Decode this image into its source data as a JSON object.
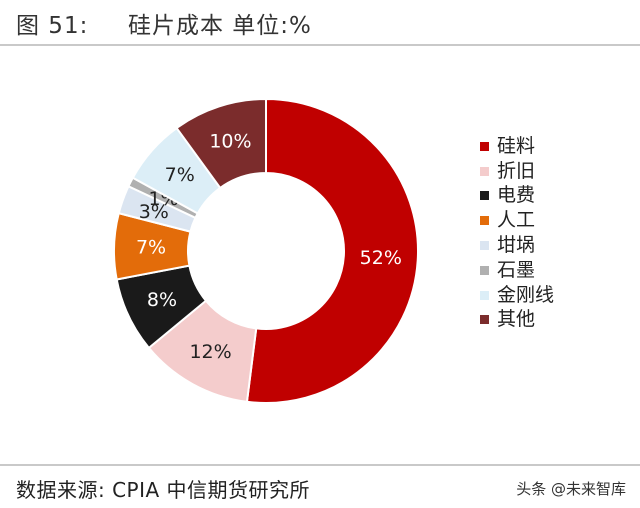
{
  "header": {
    "figure_number": "图 51:",
    "title": "硅片成本   单位:%"
  },
  "footer": {
    "source": "数据来源: CPIA  中信期货研究所",
    "watermark": "头条 @未来智库"
  },
  "chart_data": {
    "type": "pie",
    "donut": true,
    "legend_position": "right",
    "categories": [
      "硅料",
      "折旧",
      "电费",
      "人工",
      "坩埚",
      "石墨",
      "金刚线",
      "其他"
    ],
    "values": [
      52,
      12,
      8,
      7,
      3,
      1,
      7,
      10
    ],
    "data_labels": [
      "52%",
      "12%",
      "8%",
      "7%",
      "3%",
      "1%",
      "7%",
      "10%"
    ],
    "colors": [
      "#c00000",
      "#f4cccc",
      "#1a1a1a",
      "#e36c0a",
      "#dbe5f1",
      "#b0b0b0",
      "#dceef7",
      "#7b2c2c"
    ],
    "label_colors": [
      "#ffffff",
      "#222222",
      "#ffffff",
      "#ffffff",
      "#222222",
      "#222222",
      "#222222",
      "#ffffff"
    ]
  }
}
